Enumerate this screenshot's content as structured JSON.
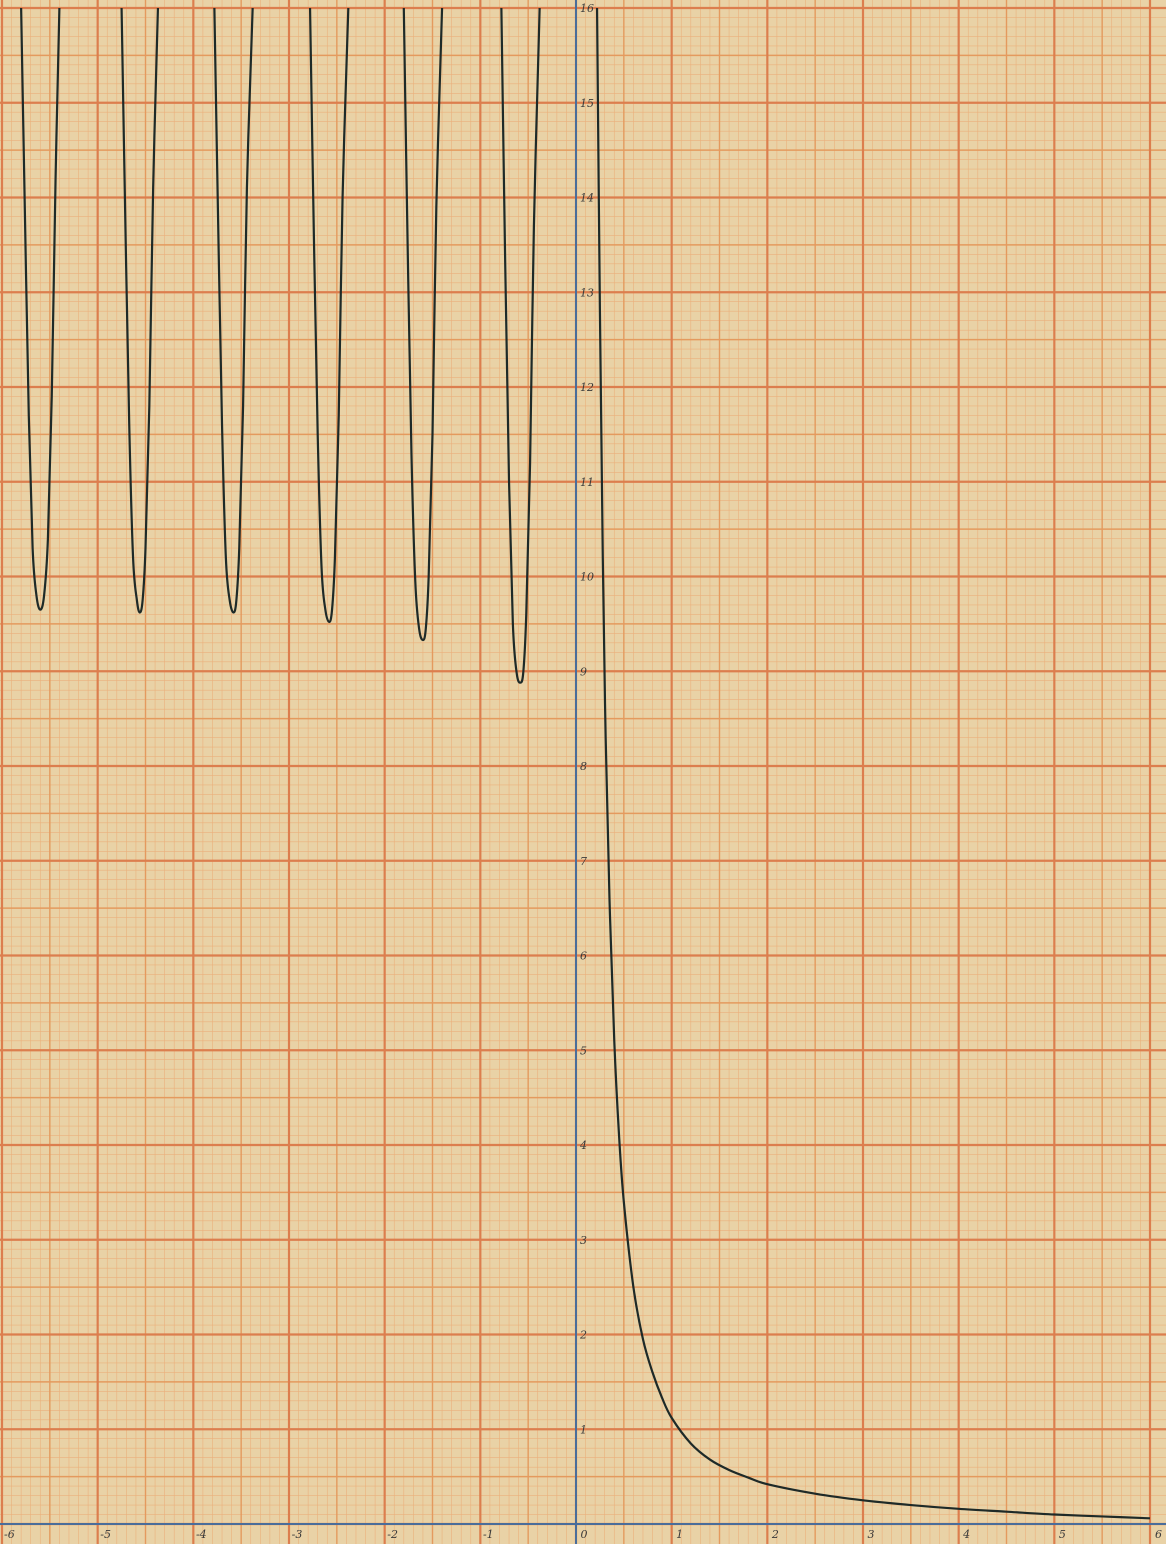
{
  "chart_data": {
    "type": "line",
    "title": "",
    "xlabel": "",
    "ylabel": "",
    "xlim": [
      -6,
      6
    ],
    "ylim": [
      0,
      16
    ],
    "grid": true,
    "x_ticks": [
      "-6",
      "-5",
      "-4",
      "-3",
      "-2",
      "-1",
      "0",
      "1",
      "2",
      "3",
      "4",
      "5",
      "6"
    ],
    "y_ticks": [
      "1",
      "2",
      "3",
      "4",
      "5",
      "6",
      "7",
      "8",
      "9",
      "10",
      "11",
      "12",
      "13",
      "14",
      "15",
      "16"
    ],
    "colors": {
      "paper": "#e9d2a6",
      "grid_minor": "#eab07c",
      "grid_mid": "#e49a5e",
      "grid_major": "#dc7e4e",
      "axis": "#4a6d9a",
      "curve": "#1e2a28"
    },
    "series": [
      {
        "branches": [
          {
            "x": [
              -5.8,
              -5.76,
              -5.72,
              -5.68,
              -5.64,
              -5.6,
              -5.56,
              -5.52,
              -5.48,
              -5.44,
              -5.4
            ],
            "y": [
              16,
              13.8,
              11.7,
              10.3,
              9.8,
              9.65,
              9.8,
              10.4,
              11.9,
              14.2,
              16
            ]
          },
          {
            "x": [
              -4.75,
              -4.71,
              -4.67,
              -4.63,
              -4.59,
              -4.56,
              -4.53,
              -4.5,
              -4.46,
              -4.42,
              -4.37
            ],
            "y": [
              16,
              13.7,
              11.6,
              10.2,
              9.75,
              9.62,
              9.75,
              10.3,
              11.8,
              14.1,
              16
            ]
          },
          {
            "x": [
              -3.78,
              -3.74,
              -3.7,
              -3.66,
              -3.62,
              -3.58,
              -3.55,
              -3.52,
              -3.48,
              -3.44,
              -3.38
            ],
            "y": [
              16,
              13.7,
              11.6,
              10.2,
              9.75,
              9.62,
              9.75,
              10.3,
              11.8,
              14.1,
              16
            ]
          },
          {
            "x": [
              -2.78,
              -2.74,
              -2.7,
              -2.66,
              -2.62,
              -2.58,
              -2.55,
              -2.52,
              -2.48,
              -2.44,
              -2.38
            ],
            "y": [
              16,
              13.6,
              11.5,
              10.1,
              9.65,
              9.52,
              9.65,
              10.2,
              11.7,
              14.0,
              16
            ]
          },
          {
            "x": [
              -1.8,
              -1.76,
              -1.72,
              -1.68,
              -1.64,
              -1.6,
              -1.57,
              -1.54,
              -1.5,
              -1.46,
              -1.4
            ],
            "y": [
              16,
              13.5,
              11.3,
              9.95,
              9.45,
              9.33,
              9.45,
              10.0,
              11.5,
              13.9,
              16
            ]
          },
          {
            "x": [
              -0.78,
              -0.74,
              -0.7,
              -0.66,
              -0.62,
              -0.58,
              -0.55,
              -0.52,
              -0.48,
              -0.44,
              -0.38
            ],
            "y": [
              16,
              13.3,
              11.0,
              9.5,
              8.98,
              8.88,
              9.0,
              9.6,
              11.2,
              13.7,
              16
            ]
          },
          {
            "x": [
              0.22,
              0.25,
              0.28,
              0.31,
              0.35,
              0.4,
              0.45,
              0.5,
              0.6,
              0.7,
              0.8,
              0.9,
              1.0,
              1.2,
              1.4,
              1.6,
              1.8,
              2.0,
              2.5,
              3.0,
              3.5,
              4.0,
              4.5,
              5.0,
              5.5,
              6.0
            ],
            "y": [
              16,
              12.8,
              10.2,
              8.3,
              6.6,
              5.1,
              4.1,
              3.4,
              2.5,
              1.95,
              1.6,
              1.33,
              1.12,
              0.85,
              0.68,
              0.57,
              0.49,
              0.42,
              0.32,
              0.25,
              0.2,
              0.16,
              0.13,
              0.1,
              0.08,
              0.06
            ]
          }
        ]
      }
    ]
  }
}
